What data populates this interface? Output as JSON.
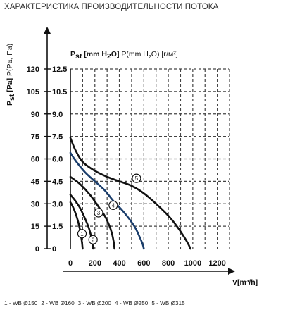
{
  "page_title": "ХАРАКТЕРИСТИКА ПРОИЗВОДИТЕЛЬНОСТИ ПОТОКА",
  "chart_data": {
    "type": "line",
    "title": "ХАРАКТЕРИСТИКА ПРОИЗВОДИТЕЛЬНОСТИ ПОТОКА",
    "ylabel": "P st [Pa] P(Pa, Па)",
    "ylabel_parts": {
      "p": "P",
      "sub": "st",
      "bold": " [Pa]",
      "normal": " P(Pa, Па)"
    },
    "y2label": "P st [mm H2O] P(mm H2O) [г/м²]",
    "y2label_parts": {
      "p": "P",
      "sub": "st",
      "bold1": " [mm H",
      "bold_sub": "2",
      "bold2": "O]",
      "normal1": " P(mm H",
      "normal_sub": "2",
      "normal2": "O) [г/м²]"
    },
    "xlabel": "V[m³/h]",
    "x_ticks": [
      "0",
      "200",
      "400",
      "600",
      "800",
      "1000",
      "1200"
    ],
    "y_ticks_pa": [
      "0",
      "15",
      "30",
      "45",
      "60",
      "75",
      "90",
      "105",
      "120"
    ],
    "y_ticks_mm": [
      "0",
      "1.5",
      "3.0",
      "4.5",
      "6.0",
      "7.5",
      "9.0",
      "10.5",
      "12.5"
    ],
    "xlim": [
      0,
      1300
    ],
    "ylim": [
      0,
      120
    ],
    "grid": true,
    "series": [
      {
        "name": "1",
        "label": "1 - WB Ø150",
        "color": "#111111",
        "marker": [
          95,
          10
        ],
        "x": [
          0,
          20,
          40,
          60,
          75,
          88,
          95,
          100
        ],
        "y": [
          31,
          28,
          24,
          19,
          14,
          8,
          4,
          0
        ]
      },
      {
        "name": "2",
        "label": "2 - WB Ø160",
        "color": "#111111",
        "marker": [
          185,
          6
        ],
        "x": [
          0,
          40,
          80,
          120,
          150,
          170,
          180,
          185
        ],
        "y": [
          36,
          32,
          27,
          20,
          14,
          8,
          4,
          0
        ]
      },
      {
        "name": "3",
        "label": "3 - WB Ø200",
        "color": "#111111",
        "marker": [
          230,
          24
        ],
        "x": [
          0,
          80,
          160,
          230,
          280,
          320,
          340,
          355,
          360
        ],
        "y": [
          48,
          43,
          36,
          28,
          22,
          15,
          10,
          4,
          0
        ]
      },
      {
        "name": "4",
        "label": "4 - WB Ø250",
        "color": "#1a3d6b",
        "marker": [
          350,
          29
        ],
        "x": [
          0,
          50,
          120,
          200,
          280,
          350,
          420,
          480,
          530,
          565,
          590,
          600
        ],
        "y": [
          64,
          58,
          51,
          45,
          39,
          32,
          26,
          20,
          14,
          8,
          3,
          0
        ]
      },
      {
        "name": "5",
        "label": "5 - WB Ø315",
        "color": "#111111",
        "marker": [
          540,
          47
        ],
        "x": [
          0,
          40,
          100,
          200,
          300,
          400,
          500,
          600,
          700,
          800,
          870,
          920,
          950,
          970,
          980
        ],
        "y": [
          74,
          66,
          58,
          52,
          48,
          45,
          42,
          37,
          30,
          22,
          15,
          9,
          5,
          2,
          0
        ]
      }
    ],
    "legend_position": "bottom"
  }
}
